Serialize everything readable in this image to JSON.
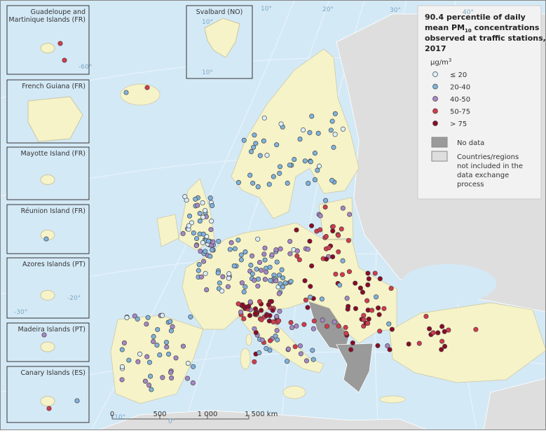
{
  "title": {
    "before": "90.4 percentile of daily",
    "line2": "mean PM",
    "sub": "10",
    "line2_after": " concentrations",
    "line3": "observed at traffic stations,",
    "line4": "2017"
  },
  "unit": {
    "base": "µg/m",
    "sup": "3"
  },
  "legend": {
    "classes": [
      {
        "label": "≤ 20",
        "color": "#dcefff"
      },
      {
        "label": "20-40",
        "color": "#7fb3dc"
      },
      {
        "label": "40-50",
        "color": "#a687c7"
      },
      {
        "label": "50-75",
        "color": "#d43a4c"
      },
      {
        "label": "> 75",
        "color": "#8c0a26"
      }
    ],
    "no_data": {
      "label": "No data",
      "color": "#9a9a9a"
    },
    "not_included": {
      "lines": [
        "Countries/regions",
        "not included in the",
        "data exchange",
        "process"
      ],
      "color": "#dedede"
    }
  },
  "insets": [
    {
      "lines": [
        "Guadeloupe and",
        "Martinique Islands (FR)"
      ]
    },
    {
      "lines": [
        "French Guiana (FR)"
      ]
    },
    {
      "lines": [
        "Mayotte Island (FR)"
      ]
    },
    {
      "lines": [
        "Réunion Island (FR)"
      ]
    },
    {
      "lines": [
        "Azores Islands (PT)"
      ]
    },
    {
      "lines": [
        "Madeira Islands (PT)"
      ]
    },
    {
      "lines": [
        "Canary Islands (ES)"
      ]
    }
  ],
  "svalbard": {
    "label": "Svalbard (NO)"
  },
  "graticule": [
    "-60°",
    "10°",
    "10°",
    "-30°",
    "-20°",
    "-10°",
    "0°",
    "10°",
    "20°",
    "30°",
    "40°"
  ],
  "scale": {
    "labels": [
      "0",
      "500",
      "1 000",
      "1 500 km"
    ]
  }
}
